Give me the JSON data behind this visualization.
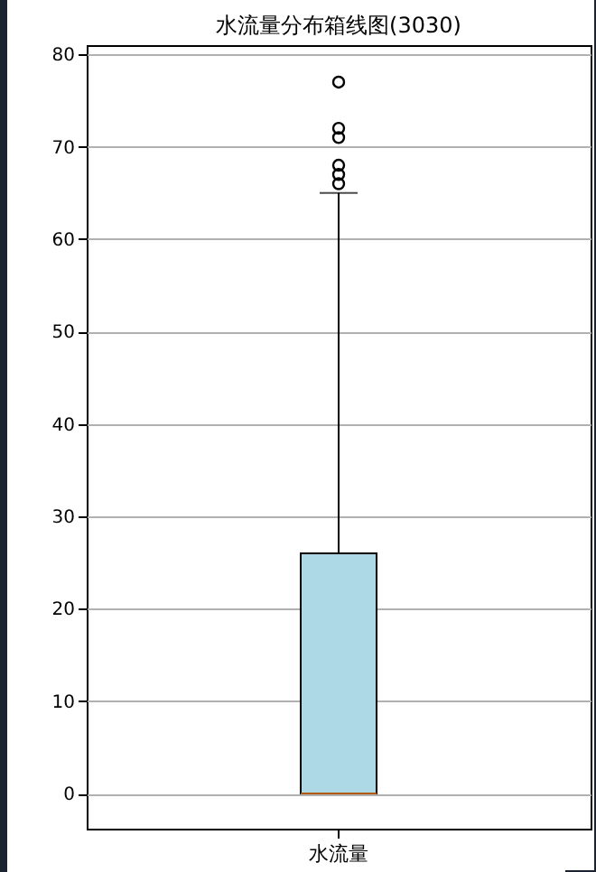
{
  "chart_data": {
    "type": "box",
    "title": "水流量分布箱线图(3030)",
    "categories": [
      "水流量"
    ],
    "series": [
      {
        "color": "#add8e6",
        "boxes": [
          {
            "low": 0,
            "q1": 0,
            "median": 0,
            "q3": 26,
            "high": 65,
            "outliers": [
              66,
              67,
              68,
              71,
              72,
              77
            ]
          }
        ]
      }
    ],
    "ylim": [
      -3.8,
      81
    ],
    "yticks": [
      0,
      10,
      20,
      30,
      40,
      50,
      60,
      70,
      80
    ],
    "grid": "y"
  }
}
